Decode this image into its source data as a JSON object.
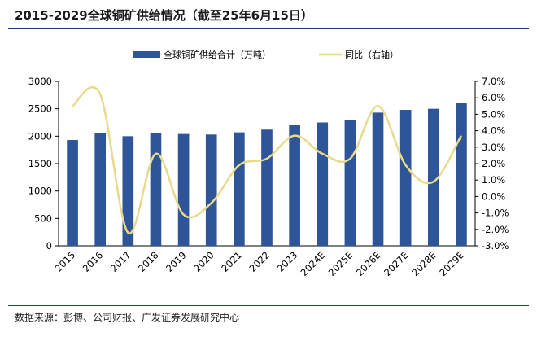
{
  "title": "2015-2029全球铜矿供给情况（截至25年6月15日）",
  "source": "数据来源：彭博、公司财报、广发证券发展研究中心",
  "chart_data": {
    "type": "bar",
    "categories": [
      "2015",
      "2016",
      "2017",
      "2018",
      "2019",
      "2020",
      "2021",
      "2022",
      "2023",
      "2024E",
      "2025E",
      "2026E",
      "2027E",
      "2028E",
      "2029E"
    ],
    "series": [
      {
        "name": "全球铜矿供给合计（万吨）",
        "type": "bar",
        "axis": "left",
        "color": "#2e5597",
        "values": [
          1930,
          2050,
          2000,
          2050,
          2040,
          2030,
          2070,
          2120,
          2200,
          2250,
          2300,
          2430,
          2480,
          2500,
          2600
        ]
      },
      {
        "name": "同比（右轴）",
        "type": "line",
        "axis": "right",
        "color": "#e8d98b",
        "values": [
          5.5,
          6.2,
          -2.2,
          2.6,
          -1.1,
          -0.4,
          1.9,
          2.3,
          3.7,
          2.6,
          2.3,
          5.5,
          1.9,
          0.9,
          3.7
        ]
      }
    ],
    "y_left": {
      "min": 0,
      "max": 3000,
      "ticks": [
        "0",
        "500",
        "1000",
        "1500",
        "2000",
        "2500",
        "3000"
      ]
    },
    "y_right": {
      "min": -3.0,
      "max": 7.0,
      "ticks": [
        "-3.0%",
        "-2.0%",
        "-1.0%",
        "0.0%",
        "1.0%",
        "2.0%",
        "3.0%",
        "4.0%",
        "5.0%",
        "6.0%",
        "7.0%"
      ]
    },
    "legend_position": "top",
    "grid": false
  }
}
